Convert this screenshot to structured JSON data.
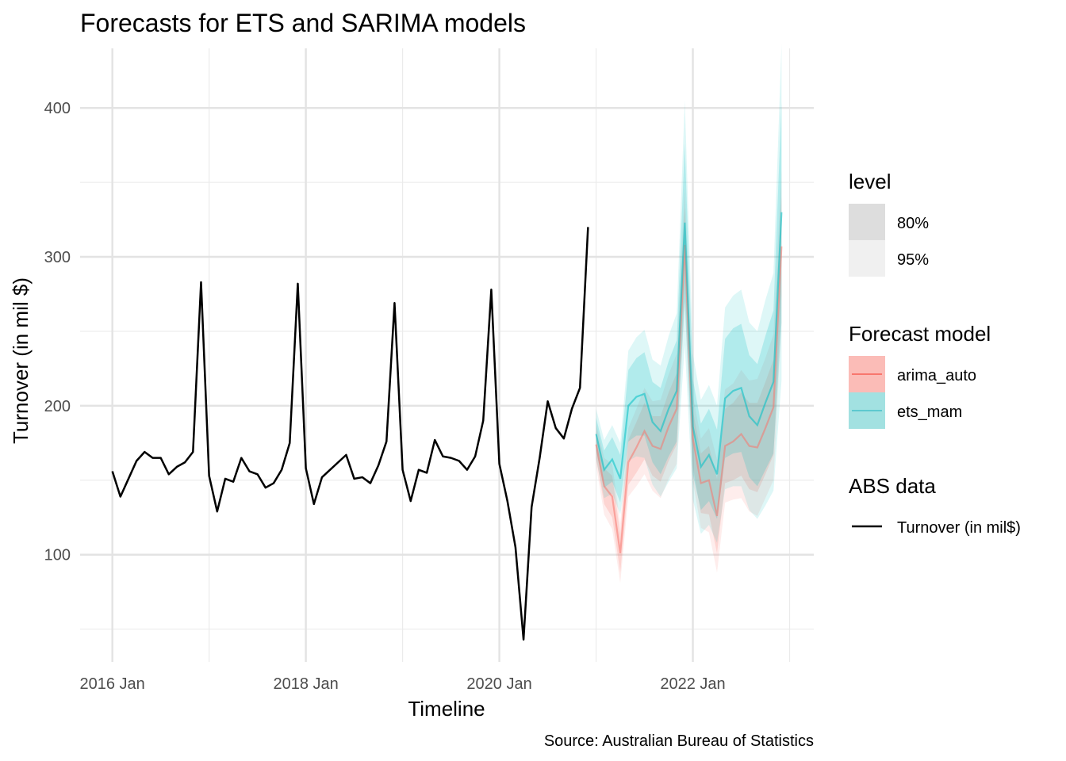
{
  "chart_data": {
    "type": "line",
    "title": "Forecasts for ETS and SARIMA models",
    "xlabel": "Timeline",
    "ylabel": "Turnover (in mil $)",
    "caption": "Source: Australian Bureau of Statistics",
    "xlim": [
      "2015-09",
      "2023-04"
    ],
    "ylim": [
      28,
      440
    ],
    "x_major_ticks": [
      "2016 Jan",
      "2018 Jan",
      "2020 Jan",
      "2022 Jan"
    ],
    "y_major_ticks": [
      100,
      200,
      300,
      400
    ],
    "grid": true,
    "history": {
      "name": "Turnover (in mil$)",
      "color": "#000000",
      "x": [
        "2016-01",
        "2016-02",
        "2016-03",
        "2016-04",
        "2016-05",
        "2016-06",
        "2016-07",
        "2016-08",
        "2016-09",
        "2016-10",
        "2016-11",
        "2016-12",
        "2017-01",
        "2017-02",
        "2017-03",
        "2017-04",
        "2017-05",
        "2017-06",
        "2017-07",
        "2017-08",
        "2017-09",
        "2017-10",
        "2017-11",
        "2017-12",
        "2018-01",
        "2018-02",
        "2018-03",
        "2018-04",
        "2018-05",
        "2018-06",
        "2018-07",
        "2018-08",
        "2018-09",
        "2018-10",
        "2018-11",
        "2018-12",
        "2019-01",
        "2019-02",
        "2019-03",
        "2019-04",
        "2019-05",
        "2019-06",
        "2019-07",
        "2019-08",
        "2019-09",
        "2019-10",
        "2019-11",
        "2019-12",
        "2020-01",
        "2020-02",
        "2020-03",
        "2020-04",
        "2020-05",
        "2020-06",
        "2020-07",
        "2020-08",
        "2020-09",
        "2020-10",
        "2020-11",
        "2020-12"
      ],
      "values": [
        156,
        139,
        151,
        163,
        169,
        165,
        165,
        154,
        159,
        162,
        169,
        283,
        153,
        129,
        151,
        149,
        165,
        156,
        154,
        145,
        148,
        157,
        175,
        282,
        158,
        134,
        152,
        157,
        162,
        167,
        151,
        152,
        148,
        160,
        176,
        269,
        157,
        136,
        157,
        155,
        177,
        166,
        165,
        163,
        157,
        166,
        190,
        278,
        161,
        136,
        105,
        43,
        132,
        165,
        203,
        185,
        178,
        198,
        212,
        320
      ]
    },
    "forecast_x": [
      "2021-01",
      "2021-02",
      "2021-03",
      "2021-04",
      "2021-05",
      "2021-06",
      "2021-07",
      "2021-08",
      "2021-09",
      "2021-10",
      "2021-11",
      "2021-12",
      "2022-01",
      "2022-02",
      "2022-03",
      "2022-04",
      "2022-05",
      "2022-06",
      "2022-07",
      "2022-08",
      "2022-09",
      "2022-10",
      "2022-11",
      "2022-12"
    ],
    "series": [
      {
        "name": "arima_auto",
        "color": "#f8766d",
        "mean": [
          174,
          146,
          139,
          101,
          162,
          172,
          183,
          173,
          171,
          186,
          198,
          308,
          178,
          148,
          150,
          126,
          173,
          176,
          181,
          173,
          172,
          185,
          199,
          307
        ],
        "lo80": [
          165,
          134,
          125,
          88,
          147,
          155,
          164,
          153,
          149,
          163,
          174,
          283,
          159,
          128,
          127,
          101,
          148,
          150,
          153,
          144,
          142,
          154,
          167,
          274
        ],
        "hi80": [
          183,
          158,
          153,
          114,
          177,
          189,
          202,
          193,
          193,
          209,
          222,
          333,
          197,
          168,
          173,
          151,
          198,
          202,
          209,
          202,
          202,
          216,
          231,
          340
        ],
        "lo95": [
          160,
          127,
          117,
          81,
          139,
          146,
          154,
          143,
          138,
          151,
          161,
          270,
          149,
          118,
          115,
          88,
          135,
          137,
          138,
          129,
          126,
          138,
          150,
          256
        ],
        "hi95": [
          188,
          165,
          161,
          121,
          185,
          198,
          212,
          203,
          204,
          221,
          235,
          346,
          207,
          178,
          185,
          164,
          211,
          215,
          224,
          217,
          218,
          232,
          248,
          358
        ]
      },
      {
        "name": "ets_mam",
        "color": "#00bfc4",
        "mean": [
          181,
          157,
          164,
          151,
          200,
          206,
          208,
          189,
          183,
          198,
          210,
          323,
          186,
          159,
          167,
          154,
          205,
          210,
          212,
          193,
          187,
          202,
          216,
          330
        ],
        "lo80": [
          170,
          145,
          149,
          135,
          176,
          180,
          180,
          162,
          154,
          166,
          176,
          270,
          154,
          130,
          136,
          124,
          165,
          168,
          169,
          152,
          146,
          157,
          168,
          256
        ],
        "hi80": [
          192,
          170,
          179,
          167,
          224,
          232,
          236,
          216,
          212,
          230,
          244,
          376,
          218,
          188,
          198,
          184,
          245,
          252,
          255,
          234,
          228,
          247,
          264,
          404
        ],
        "lo95": [
          164,
          138,
          141,
          127,
          163,
          166,
          165,
          147,
          139,
          149,
          158,
          241,
          137,
          114,
          120,
          108,
          144,
          146,
          146,
          130,
          124,
          133,
          143,
          217
        ],
        "hi95": [
          198,
          177,
          187,
          175,
          237,
          246,
          251,
          231,
          227,
          247,
          262,
          405,
          235,
          204,
          214,
          200,
          266,
          274,
          278,
          256,
          250,
          271,
          289,
          443
        ]
      }
    ],
    "legend": {
      "level_title": "level",
      "levels": [
        {
          "label": "80%",
          "fill": "#dddddd"
        },
        {
          "label": "95%",
          "fill": "#f0f0f0"
        }
      ],
      "model_title": "Forecast model",
      "models": [
        {
          "label": "arima_auto",
          "line": "#f8766d",
          "fill": "#fbbcb7"
        },
        {
          "label": "ets_mam",
          "line": "#5ec9cf",
          "fill": "#a2e1e1"
        }
      ],
      "data_title": "ABS data",
      "data_items": [
        {
          "label": "Turnover (in mil$)",
          "line": "#000000"
        }
      ],
      "placement": "right"
    }
  }
}
